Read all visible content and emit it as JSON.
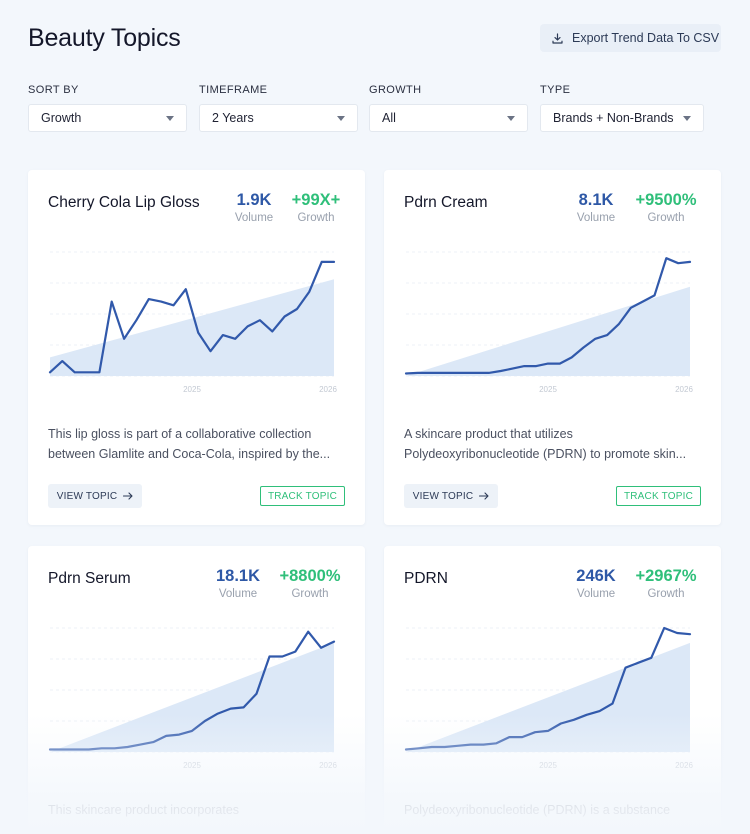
{
  "header": {
    "title": "Beauty Topics",
    "export_label": "Export Trend Data To CSV"
  },
  "filters": [
    {
      "label": "SORT BY",
      "value": "Growth"
    },
    {
      "label": "TIMEFRAME",
      "value": "2 Years"
    },
    {
      "label": "GROWTH",
      "value": "All"
    },
    {
      "label": "TYPE",
      "value": "Brands + Non-Brands"
    }
  ],
  "cards": [
    {
      "title": "Cherry Cola Lip Gloss",
      "volume": "1.9K",
      "volume_label": "Volume",
      "growth": "+99X+",
      "growth_label": "Growth",
      "desc1": "This lip gloss is part of a collaborative collection",
      "desc2": "between Glamlite and Coca-Cola, inspired by the...",
      "view_label": "VIEW TOPIC",
      "track_label": "TRACK TOPIC"
    },
    {
      "title": "Pdrn Cream",
      "volume": "8.1K",
      "volume_label": "Volume",
      "growth": "+9500%",
      "growth_label": "Growth",
      "desc1": "A skincare product that utilizes",
      "desc2": "Polydeoxyribonucleotide (PDRN) to promote skin...",
      "view_label": "VIEW TOPIC",
      "track_label": "TRACK TOPIC"
    },
    {
      "title": "Pdrn Serum",
      "volume": "18.1K",
      "volume_label": "Volume",
      "growth": "+8800%",
      "growth_label": "Growth",
      "desc1": "This skincare product incorporates",
      "desc2": ""
    },
    {
      "title": "PDRN",
      "volume": "246K",
      "volume_label": "Volume",
      "growth": "+2967%",
      "growth_label": "Growth",
      "desc1": "Polydeoxyribonucleotide (PDRN) is a substance",
      "desc2": ""
    }
  ],
  "chart_data": [
    {
      "type": "line",
      "ticks": [
        "2025",
        "2026"
      ],
      "values": [
        3,
        12,
        3,
        3,
        3,
        60,
        30,
        45,
        62,
        60,
        57,
        70,
        35,
        20,
        33,
        30,
        40,
        45,
        36,
        48,
        54,
        68,
        92,
        92
      ],
      "trend": [
        15,
        78
      ],
      "ylim": [
        0,
        100
      ]
    },
    {
      "type": "line",
      "ticks": [
        "2025",
        "2026"
      ],
      "values": [
        2,
        2.5,
        2.5,
        2.5,
        2.5,
        2.5,
        2.5,
        2.5,
        4,
        6,
        8,
        8,
        10,
        10,
        15,
        23,
        30,
        33,
        42,
        55,
        60,
        65,
        95,
        91,
        92
      ],
      "trend": [
        0,
        72
      ],
      "ylim": [
        0,
        100
      ]
    },
    {
      "type": "line",
      "ticks": [
        "2025",
        "2026"
      ],
      "values": [
        2,
        2,
        2,
        2,
        3,
        3,
        4,
        6,
        8,
        13,
        14,
        17,
        25,
        31,
        35,
        36,
        47,
        77,
        77,
        81,
        97,
        84,
        89
      ],
      "trend": [
        0,
        88
      ],
      "ylim": [
        0,
        100
      ]
    },
    {
      "type": "line",
      "ticks": [
        "2025",
        "2026"
      ],
      "values": [
        2,
        3,
        4,
        4,
        5,
        6,
        6,
        7,
        12,
        12,
        16,
        17,
        23,
        26,
        30,
        33,
        39,
        68,
        72,
        76,
        100,
        96,
        95
      ],
      "trend": [
        0,
        88
      ],
      "ylim": [
        0,
        100
      ]
    }
  ],
  "colors": {
    "accent_blue": "#2e58a6",
    "growth_green": "#2fbf7a",
    "line": "#3159ab",
    "area": "#dce8f7"
  },
  "icons": {
    "export": "download-icon",
    "select": "chevron-down-icon",
    "view": "arrow-right-icon"
  }
}
